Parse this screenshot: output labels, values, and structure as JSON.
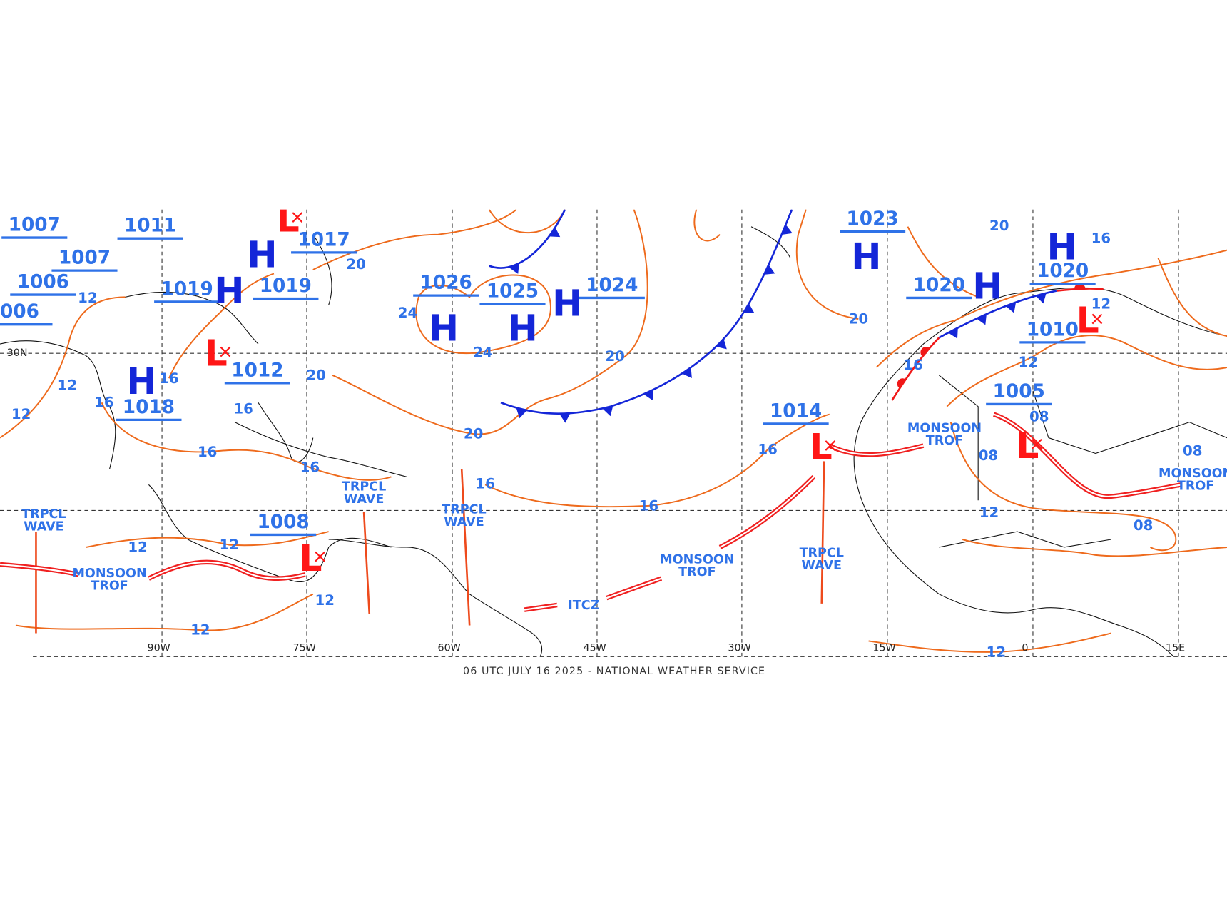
{
  "footer": "06 UTC JULY 16 2025 - NATIONAL WEATHER SERVICE",
  "longitudes": [
    "90W",
    "75W",
    "60W",
    "45W",
    "30W",
    "15W",
    "0",
    "15E"
  ],
  "latitudes": [
    "30N"
  ],
  "pressure_labels": [
    "1026",
    "1025",
    "1024",
    "1023",
    "1020",
    "1020",
    "1010",
    "1005",
    "1014",
    "1017",
    "1019",
    "1019",
    "1012",
    "1018",
    "1011",
    "1007",
    "1007",
    "1006",
    "006",
    "1008"
  ],
  "high_symbols": [
    "H",
    "H",
    "H",
    "H",
    "H",
    "H",
    "H",
    "H",
    "H"
  ],
  "low_symbols": [
    "L",
    "L",
    "L",
    "L",
    "L",
    "L"
  ],
  "isobar_labels": [
    "20",
    "20",
    "20",
    "20",
    "20",
    "20",
    "24",
    "24",
    "16",
    "16",
    "16",
    "16",
    "16",
    "16",
    "16",
    "16",
    "16",
    "16",
    "12",
    "12",
    "12",
    "12",
    "12",
    "12",
    "12",
    "12",
    "12",
    "12",
    "12",
    "08",
    "08",
    "08",
    "08"
  ],
  "features": [
    [
      "TRPCL",
      "WAVE"
    ],
    [
      "TRPCL",
      "WAVE"
    ],
    [
      "TRPCL",
      "WAVE"
    ],
    [
      "TRPCL",
      "WAVE"
    ],
    [
      "MONSOON",
      "TROF"
    ],
    [
      "MONSOON",
      "TROF"
    ],
    [
      "MONSOON",
      "TROF"
    ],
    [
      "MONSOON",
      "TROF"
    ]
  ],
  "itcz": "ITCZ"
}
